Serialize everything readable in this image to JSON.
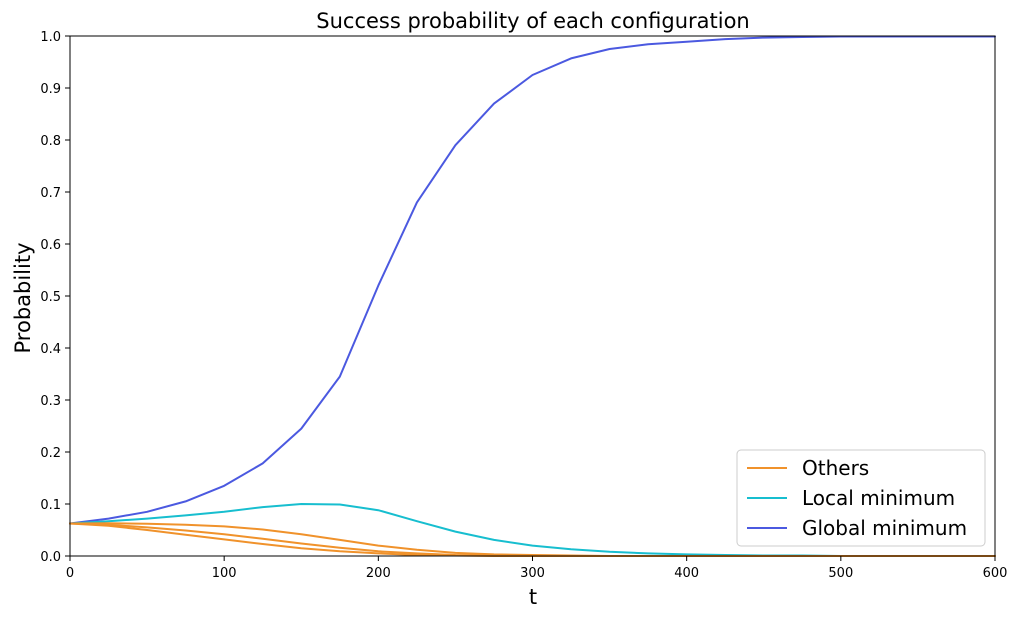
{
  "chart_data": {
    "type": "line",
    "title": "Success probability of each configuration",
    "xlabel": "t",
    "ylabel": "Probability",
    "xlim": [
      0,
      600
    ],
    "ylim": [
      0,
      1.0
    ],
    "x_ticks": [
      0,
      100,
      200,
      300,
      400,
      500,
      600
    ],
    "y_ticks": [
      0.0,
      0.1,
      0.2,
      0.3,
      0.4,
      0.5,
      0.6,
      0.7,
      0.8,
      0.9,
      1.0
    ],
    "grid": false,
    "legend_position": "lower-right",
    "legend": [
      {
        "name": "Others",
        "color": "#f0922b"
      },
      {
        "name": "Local minimum",
        "color": "#17becf"
      },
      {
        "name": "Global minimum",
        "color": "#4b59e0"
      }
    ],
    "x": [
      0,
      25,
      50,
      75,
      100,
      125,
      150,
      175,
      200,
      225,
      250,
      275,
      300,
      325,
      350,
      375,
      400,
      425,
      450,
      475,
      500,
      525,
      550,
      575,
      600
    ],
    "series": [
      {
        "group": "Global minimum",
        "color": "#4b59e0",
        "values": [
          0.0625,
          0.072,
          0.085,
          0.105,
          0.135,
          0.178,
          0.245,
          0.345,
          0.52,
          0.68,
          0.79,
          0.87,
          0.925,
          0.957,
          0.975,
          0.984,
          0.989,
          0.994,
          0.997,
          0.998,
          0.999,
          0.999,
          0.999,
          0.999,
          0.999
        ]
      },
      {
        "group": "Local minimum",
        "color": "#17becf",
        "values": [
          0.0625,
          0.067,
          0.072,
          0.078,
          0.085,
          0.094,
          0.1,
          0.099,
          0.088,
          0.067,
          0.047,
          0.031,
          0.02,
          0.013,
          0.008,
          0.005,
          0.003,
          0.002,
          0.001,
          0.001,
          0.0,
          0.0,
          0.0,
          0.0,
          0.0
        ]
      },
      {
        "group": "Others",
        "color": "#f0922b",
        "values": [
          0.0625,
          0.063,
          0.062,
          0.06,
          0.057,
          0.051,
          0.042,
          0.031,
          0.02,
          0.012,
          0.006,
          0.003,
          0.002,
          0.001,
          0.0,
          0.0,
          0.0,
          0.0,
          0.0,
          0.0,
          0.0,
          0.0,
          0.0,
          0.0,
          0.0
        ]
      },
      {
        "group": "Others",
        "color": "#f0922b",
        "values": [
          0.0625,
          0.06,
          0.055,
          0.049,
          0.042,
          0.033,
          0.024,
          0.016,
          0.009,
          0.005,
          0.002,
          0.001,
          0.0,
          0.0,
          0.0,
          0.0,
          0.0,
          0.0,
          0.0,
          0.0,
          0.0,
          0.0,
          0.0,
          0.0,
          0.0
        ]
      },
      {
        "group": "Others",
        "color": "#f0922b",
        "values": [
          0.0625,
          0.058,
          0.05,
          0.041,
          0.032,
          0.023,
          0.015,
          0.009,
          0.005,
          0.002,
          0.001,
          0.0,
          0.0,
          0.0,
          0.0,
          0.0,
          0.0,
          0.0,
          0.0,
          0.0,
          0.0,
          0.0,
          0.0,
          0.0,
          0.0
        ]
      }
    ]
  }
}
